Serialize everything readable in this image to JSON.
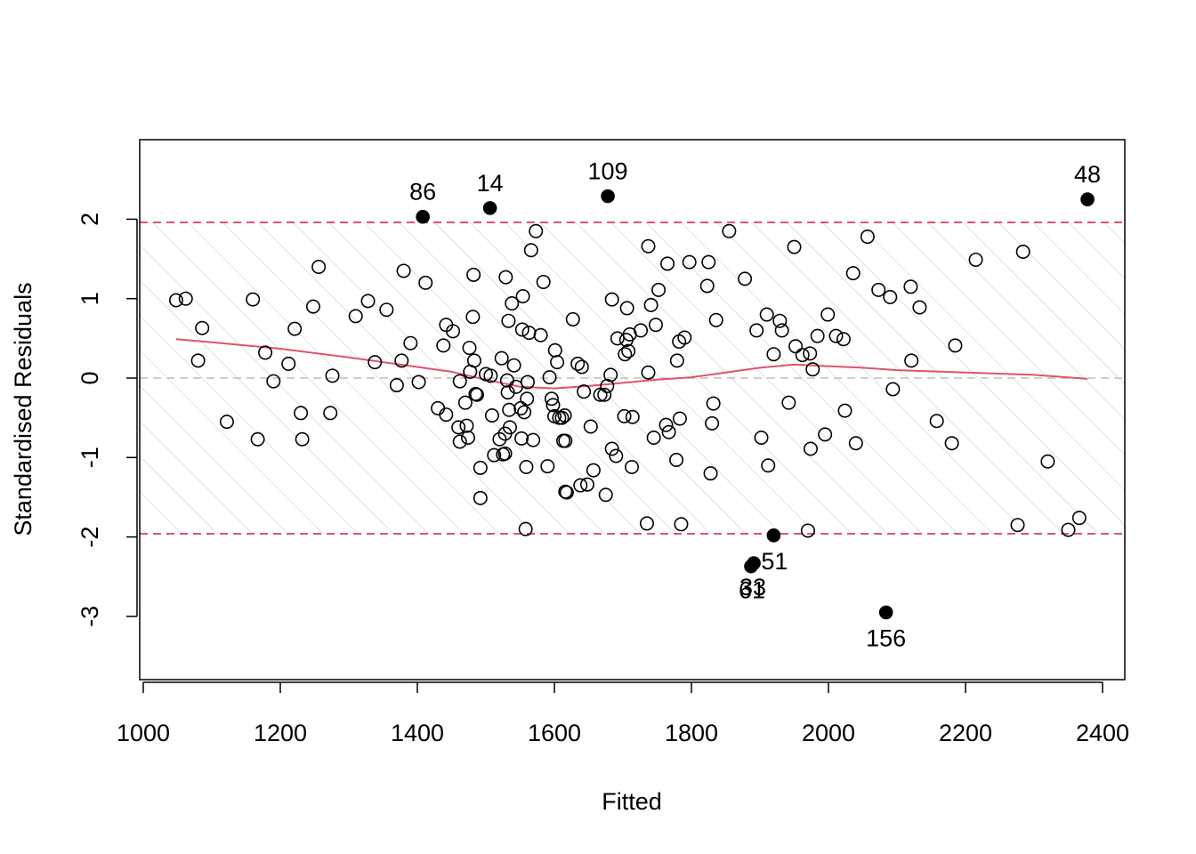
{
  "chart_data": {
    "type": "scatter",
    "title": "",
    "xlabel": "Fitted",
    "ylabel": "Standardised Residuals",
    "xlim": [
      1000,
      2400
    ],
    "ylim": [
      -3.7,
      2.9
    ],
    "xticks": [
      1000,
      1200,
      1400,
      1600,
      1800,
      2000,
      2200,
      2400
    ],
    "yticks": [
      -3,
      -2,
      -1,
      0,
      1,
      2
    ],
    "grid": false,
    "legend": "none",
    "thresholds": [
      1.96,
      -1.96
    ],
    "colors": {
      "points": "#000000",
      "smooth": "#DF536B",
      "threshold": "#DF536B",
      "zero": "#BEBEBE",
      "hatch": "#D3D3D3"
    },
    "points": [
      [
        1048,
        0.98
      ],
      [
        1062,
        1.0
      ],
      [
        1080,
        0.22
      ],
      [
        1086,
        0.63
      ],
      [
        1122,
        -0.55
      ],
      [
        1160,
        0.99
      ],
      [
        1167,
        -0.77
      ],
      [
        1178,
        0.32
      ],
      [
        1190,
        -0.04
      ],
      [
        1212,
        0.18
      ],
      [
        1221,
        0.62
      ],
      [
        1230,
        -0.44
      ],
      [
        1232,
        -0.77
      ],
      [
        1248,
        0.9
      ],
      [
        1256,
        1.4
      ],
      [
        1273,
        -0.44
      ],
      [
        1276,
        0.03
      ],
      [
        1310,
        0.78
      ],
      [
        1328,
        0.97
      ],
      [
        1338,
        0.2
      ],
      [
        1355,
        0.86
      ],
      [
        1370,
        -0.09
      ],
      [
        1377,
        0.22
      ],
      [
        1380,
        1.35
      ],
      [
        1390,
        0.44
      ],
      [
        1402,
        -0.05
      ],
      [
        1412,
        1.2
      ],
      [
        1430,
        -0.38
      ],
      [
        1438,
        0.41
      ],
      [
        1442,
        -0.46
      ],
      [
        1442,
        0.67
      ],
      [
        1452,
        0.59
      ],
      [
        1460,
        -0.62
      ],
      [
        1462,
        -0.8
      ],
      [
        1462,
        -0.04
      ],
      [
        1470,
        -0.31
      ],
      [
        1472,
        -0.6
      ],
      [
        1474,
        -0.75
      ],
      [
        1476,
        0.38
      ],
      [
        1477,
        0.08
      ],
      [
        1481,
        0.77
      ],
      [
        1483,
        0.22
      ],
      [
        1482,
        1.3
      ],
      [
        1485,
        -0.2
      ],
      [
        1487,
        -0.21
      ],
      [
        1492,
        -1.13
      ],
      [
        1492,
        -1.51
      ],
      [
        1500,
        0.05
      ],
      [
        1507,
        0.03
      ],
      [
        1509,
        -0.47
      ],
      [
        1512,
        -0.97
      ],
      [
        1520,
        -0.77
      ],
      [
        1523,
        0.25
      ],
      [
        1525,
        -0.96
      ],
      [
        1528,
        -0.95
      ],
      [
        1528,
        -0.7
      ],
      [
        1529,
        1.27
      ],
      [
        1531,
        -0.03
      ],
      [
        1532,
        -0.18
      ],
      [
        1533,
        0.72
      ],
      [
        1534,
        -0.4
      ],
      [
        1535,
        -0.62
      ],
      [
        1538,
        0.94
      ],
      [
        1541,
        0.16
      ],
      [
        1544,
        -0.11
      ],
      [
        1551,
        -0.38
      ],
      [
        1552,
        -0.76
      ],
      [
        1553,
        0.61
      ],
      [
        1554,
        1.03
      ],
      [
        1556,
        -0.43
      ],
      [
        1558,
        -1.9
      ],
      [
        1559,
        -1.12
      ],
      [
        1560,
        -0.26
      ],
      [
        1561,
        -0.05
      ],
      [
        1563,
        0.57
      ],
      [
        1566,
        1.61
      ],
      [
        1569,
        -0.78
      ],
      [
        1573,
        1.85
      ],
      [
        1580,
        0.54
      ],
      [
        1584,
        1.21
      ],
      [
        1590,
        -1.11
      ],
      [
        1593,
        0.01
      ],
      [
        1596,
        -0.26
      ],
      [
        1598,
        -0.34
      ],
      [
        1600,
        -0.48
      ],
      [
        1601,
        0.35
      ],
      [
        1604,
        0.2
      ],
      [
        1607,
        -0.5
      ],
      [
        1611,
        -0.5
      ],
      [
        1613,
        -0.79
      ],
      [
        1615,
        -0.47
      ],
      [
        1616,
        -0.79
      ],
      [
        1616,
        -1.43
      ],
      [
        1618,
        -1.44
      ],
      [
        1627,
        0.74
      ],
      [
        1634,
        0.18
      ],
      [
        1638,
        -1.35
      ],
      [
        1640,
        0.14
      ],
      [
        1643,
        -0.17
      ],
      [
        1648,
        -1.34
      ],
      [
        1653,
        -0.61
      ],
      [
        1657,
        -1.16
      ],
      [
        1667,
        -0.21
      ],
      [
        1673,
        -0.21
      ],
      [
        1675,
        -1.47
      ],
      [
        1677,
        -0.1
      ],
      [
        1682,
        0.04
      ],
      [
        1684,
        0.99
      ],
      [
        1684,
        -0.89
      ],
      [
        1690,
        -0.98
      ],
      [
        1692,
        0.5
      ],
      [
        1702,
        -0.48
      ],
      [
        1703,
        0.3
      ],
      [
        1705,
        0.48
      ],
      [
        1706,
        0.88
      ],
      [
        1708,
        0.34
      ],
      [
        1710,
        0.55
      ],
      [
        1713,
        -1.12
      ],
      [
        1714,
        -0.49
      ],
      [
        1726,
        0.6
      ],
      [
        1735,
        -1.83
      ],
      [
        1737,
        0.07
      ],
      [
        1737,
        1.66
      ],
      [
        1741,
        0.92
      ],
      [
        1745,
        -0.75
      ],
      [
        1748,
        0.67
      ],
      [
        1752,
        1.11
      ],
      [
        1763,
        -0.59
      ],
      [
        1765,
        1.44
      ],
      [
        1767,
        -0.68
      ],
      [
        1778,
        -1.03
      ],
      [
        1779,
        0.22
      ],
      [
        1782,
        0.46
      ],
      [
        1783,
        -0.51
      ],
      [
        1785,
        -1.84
      ],
      [
        1790,
        0.51
      ],
      [
        1797,
        1.46
      ],
      [
        1825,
        1.46
      ],
      [
        1823,
        1.16
      ],
      [
        1828,
        -1.2
      ],
      [
        1830,
        -0.57
      ],
      [
        1832,
        -0.32
      ],
      [
        1836,
        0.73
      ],
      [
        1855,
        1.85
      ],
      [
        1878,
        1.25
      ],
      [
        1895,
        0.6
      ],
      [
        1902,
        -0.75
      ],
      [
        1910,
        0.8
      ],
      [
        1912,
        -1.1
      ],
      [
        1920,
        0.3
      ],
      [
        1929,
        0.72
      ],
      [
        1932,
        0.6
      ],
      [
        1942,
        -0.31
      ],
      [
        1950,
        1.65
      ],
      [
        1952,
        0.4
      ],
      [
        1962,
        0.29
      ],
      [
        1970,
        -1.92
      ],
      [
        1973,
        0.31
      ],
      [
        1974,
        -0.89
      ],
      [
        1977,
        0.11
      ],
      [
        1984,
        0.53
      ],
      [
        1995,
        -0.71
      ],
      [
        1999,
        0.8
      ],
      [
        2011,
        0.53
      ],
      [
        2022,
        0.49
      ],
      [
        2024,
        -0.41
      ],
      [
        2036,
        1.32
      ],
      [
        2040,
        -0.82
      ],
      [
        2057,
        1.78
      ],
      [
        2073,
        1.11
      ],
      [
        2090,
        1.02
      ],
      [
        2094,
        -0.14
      ],
      [
        2120,
        1.15
      ],
      [
        2121,
        0.22
      ],
      [
        2133,
        0.89
      ],
      [
        2158,
        -0.54
      ],
      [
        2180,
        -0.82
      ],
      [
        2185,
        0.41
      ],
      [
        2215,
        1.49
      ],
      [
        2276,
        -1.85
      ],
      [
        2284,
        1.59
      ],
      [
        2320,
        -1.05
      ],
      [
        2350,
        -1.91
      ],
      [
        2366,
        -1.76
      ]
    ],
    "outliers": [
      {
        "x": 1408,
        "y": 2.03,
        "label": "86"
      },
      {
        "x": 1506,
        "y": 2.14,
        "label": "14"
      },
      {
        "x": 1678,
        "y": 2.29,
        "label": "109"
      },
      {
        "x": 2378,
        "y": 2.25,
        "label": "48"
      },
      {
        "x": 1920,
        "y": -1.98,
        "label": "51"
      },
      {
        "x": 1891,
        "y": -2.33,
        "label": "33"
      },
      {
        "x": 1887,
        "y": -2.37,
        "label": "61"
      },
      {
        "x": 2084,
        "y": -2.95,
        "label": "156"
      }
    ],
    "smooth": [
      [
        1048,
        0.49
      ],
      [
        1100,
        0.45
      ],
      [
        1200,
        0.37
      ],
      [
        1300,
        0.26
      ],
      [
        1400,
        0.14
      ],
      [
        1450,
        0.08
      ],
      [
        1500,
        -0.02
      ],
      [
        1550,
        -0.11
      ],
      [
        1600,
        -0.13
      ],
      [
        1650,
        -0.1
      ],
      [
        1700,
        -0.06
      ],
      [
        1750,
        -0.02
      ],
      [
        1800,
        0.01
      ],
      [
        1850,
        0.07
      ],
      [
        1900,
        0.13
      ],
      [
        1950,
        0.17
      ],
      [
        2000,
        0.15
      ],
      [
        2050,
        0.13
      ],
      [
        2100,
        0.1
      ],
      [
        2200,
        0.07
      ],
      [
        2300,
        0.04
      ],
      [
        2378,
        -0.01
      ]
    ]
  }
}
